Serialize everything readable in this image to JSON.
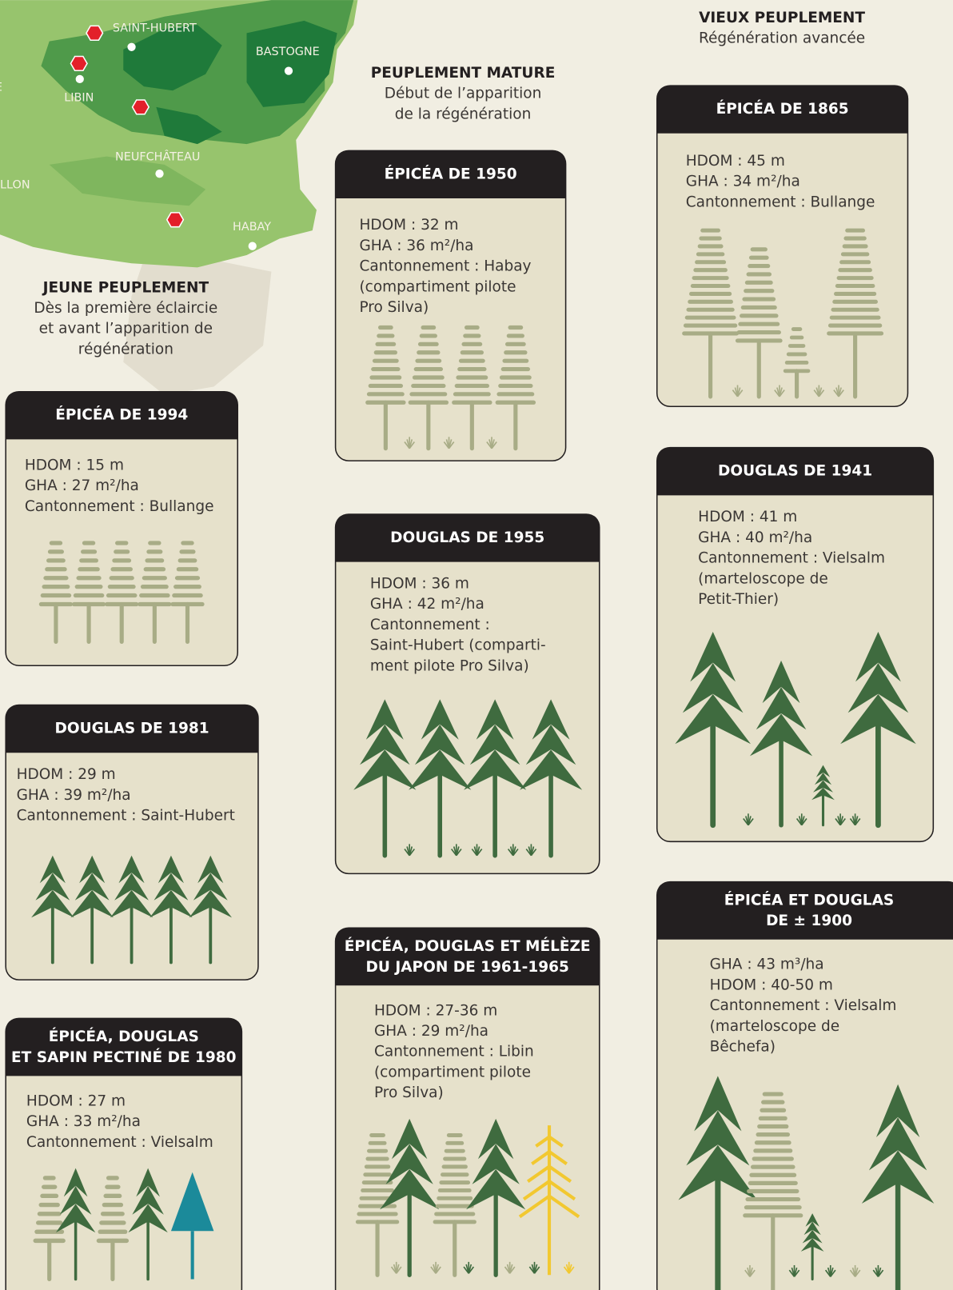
{
  "map": {
    "labels": [
      "SAINT-HUBERT",
      "BASTOGNE",
      "LIBIN",
      "NEUFCHÂTEAU",
      "LLON",
      "HABAY",
      "E"
    ]
  },
  "sections": [
    {
      "title": "JEUNE PEUPLEMENT",
      "lines": [
        "Dès la première éclaircie",
        "et avant l’apparition de",
        "régénération"
      ]
    },
    {
      "title": "PEUPLEMENT MATURE",
      "lines": [
        "Début de l’apparition",
        "de la régénération"
      ]
    },
    {
      "title": "VIEUX PEUPLEMENT",
      "lines": [
        "Régénération avancée"
      ]
    }
  ],
  "cards": [
    {
      "title": [
        "ÉPICÉA DE 1994"
      ],
      "lines": [
        "HDOM : 15 m",
        "GHA : 27 m²/ha",
        "Cantonnement : Bullange"
      ]
    },
    {
      "title": [
        "DOUGLAS DE 1981"
      ],
      "lines": [
        "HDOM : 29 m",
        "GHA : 39 m²/ha",
        "Cantonnement : Saint-Hubert"
      ]
    },
    {
      "title": [
        "ÉPICÉA, DOUGLAS",
        "ET SAPIN PECTINÉ DE 1980"
      ],
      "lines": [
        "HDOM : 27 m",
        "GHA : 33 m²/ha",
        "Cantonnement : Vielsalm"
      ]
    },
    {
      "title": [
        "ÉPICÉA DE 1950"
      ],
      "lines": [
        "HDOM : 32 m",
        "GHA : 36 m²/ha",
        "Cantonnement : Habay",
        "(compartiment pilote",
        "Pro Silva)"
      ]
    },
    {
      "title": [
        "DOUGLAS DE 1955"
      ],
      "lines": [
        "HDOM : 36 m",
        "GHA : 42 m²/ha",
        "Cantonnement :",
        "Saint-Hubert (comparti-",
        "ment pilote Pro Silva)"
      ]
    },
    {
      "title": [
        "ÉPICÉA, DOUGLAS ET MÉLÈZE",
        "DU JAPON DE 1961-1965"
      ],
      "lines": [
        "HDOM : 27-36 m",
        "GHA : 29 m²/ha",
        "Cantonnement : Libin",
        "(compartiment pilote",
        "Pro Silva)"
      ]
    },
    {
      "title": [
        "ÉPICÉA DE 1865"
      ],
      "lines": [
        "HDOM : 45 m",
        "GHA : 34 m²/ha",
        "Cantonnement : Bullange"
      ]
    },
    {
      "title": [
        "DOUGLAS DE 1941"
      ],
      "lines": [
        "HDOM : 41 m",
        "GHA : 40 m²/ha",
        "Cantonnement : Vielsalm",
        "(marteloscope de",
        "Petit-Thier)"
      ]
    },
    {
      "title": [
        "ÉPICÉA ET DOUGLAS",
        "DE ± 1900"
      ],
      "lines": [
        "GHA : 43 m³/ha",
        "HDOM : 40-50 m",
        "Cantonnement : Vielsalm",
        "(marteloscope de",
        "Bêchefa)"
      ]
    }
  ]
}
